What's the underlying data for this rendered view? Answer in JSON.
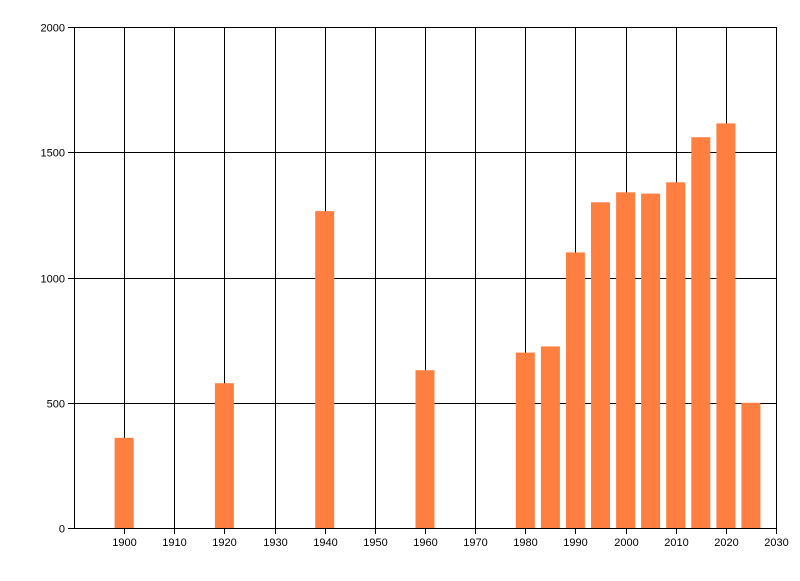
{
  "colors": {
    "bar": "#ff7f41",
    "grid": "#000000",
    "axis": "#000000",
    "background": "#ffffff"
  },
  "chart_data": {
    "type": "bar",
    "title": "",
    "xlabel": "",
    "ylabel": "",
    "grid": true,
    "legend": "none",
    "xlim": [
      1890,
      2030
    ],
    "ylim": [
      0,
      2000
    ],
    "x_ticks": [
      1900,
      1910,
      1920,
      1930,
      1940,
      1950,
      1960,
      1970,
      1980,
      1990,
      2000,
      2010,
      2020,
      2030
    ],
    "y_ticks": [
      0,
      500,
      1000,
      1500,
      2000
    ],
    "x": [
      1900,
      1920,
      1940,
      1960,
      1980,
      1985,
      1990,
      1995,
      2000,
      2005,
      2010,
      2015,
      2020,
      2025
    ],
    "values": [
      360,
      578,
      1265,
      630,
      700,
      725,
      1100,
      1300,
      1340,
      1335,
      1380,
      1560,
      1615,
      500
    ]
  }
}
